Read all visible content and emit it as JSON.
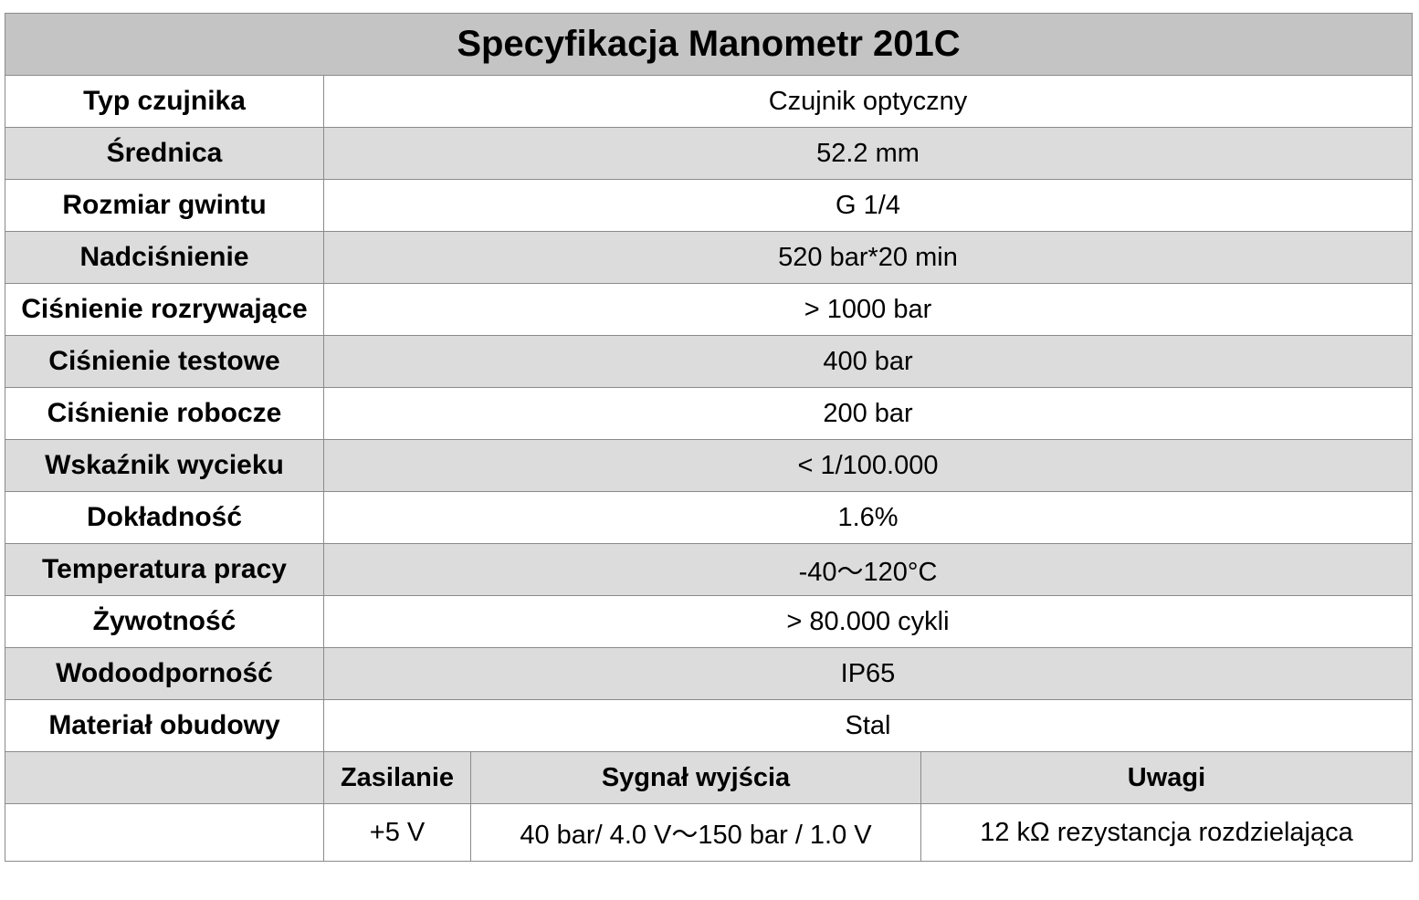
{
  "title": "Specyfikacja Manometr 201C",
  "specs": [
    {
      "label": "Typ czujnika",
      "value": "Czujnik optyczny"
    },
    {
      "label": "Średnica",
      "value": "52.2 mm"
    },
    {
      "label": "Rozmiar gwintu",
      "value": "G 1/4"
    },
    {
      "label": "Nadciśnienie",
      "value": "520 bar*20 min"
    },
    {
      "label": "Ciśnienie rozrywające",
      "value": "> 1000 bar"
    },
    {
      "label": "Ciśnienie testowe",
      "value": "400 bar"
    },
    {
      "label": "Ciśnienie robocze",
      "value": "200 bar"
    },
    {
      "label": "Wskaźnik wycieku",
      "value": "< 1/100.000"
    },
    {
      "label": "Dokładność",
      "value": "1.6%"
    },
    {
      "label": "Temperatura pracy",
      "value": "-40～120°C"
    },
    {
      "label": "Żywotność",
      "value": "> 80.000 cykli"
    },
    {
      "label": "Wodoodporność",
      "value": "IP65"
    },
    {
      "label": "Materiał obudowy",
      "value": "Stal"
    }
  ],
  "electrical": {
    "headers": {
      "power": "Zasilanie",
      "output": "Sygnał wyjścia",
      "notes": "Uwagi"
    },
    "values": {
      "power": "+5 V",
      "output": "40 bar/ 4.0 V～150 bar / 1.0 V",
      "notes": "12 kΩ rezystancja rozdzielająca"
    }
  }
}
